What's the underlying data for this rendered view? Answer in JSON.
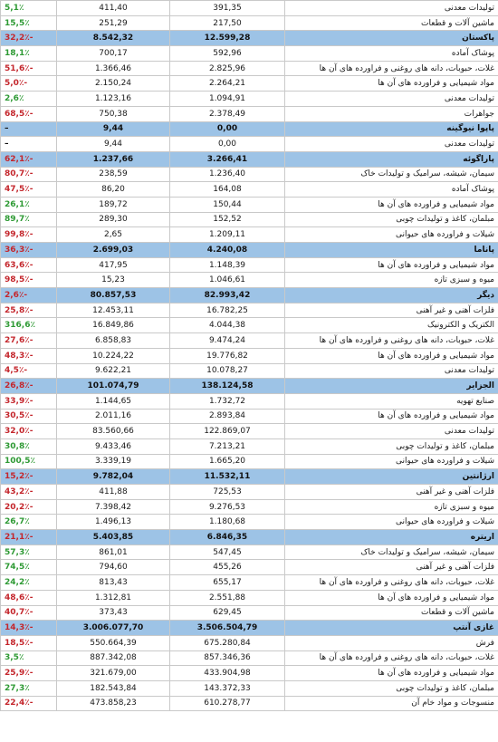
{
  "rows": [
    {
      "type": "item",
      "name": "تولیدات معدنی",
      "v2": "391,35",
      "v1": "411,40",
      "pct": "5,1٪",
      "sign": "pos"
    },
    {
      "type": "item",
      "name": "ماشین آلات و قطعات",
      "v2": "217,50",
      "v1": "251,29",
      "pct": "15,5٪",
      "sign": "pos"
    },
    {
      "type": "header",
      "name": "پاکستان",
      "v2": "12.599,28",
      "v1": "8.542,32",
      "pct": "32,2٪-",
      "sign": "neg"
    },
    {
      "type": "item",
      "name": "پوشاک آماده",
      "v2": "592,96",
      "v1": "700,17",
      "pct": "18,1٪",
      "sign": "pos"
    },
    {
      "type": "item",
      "name": "غلات، حبوبات، دانه های روغنی و فراورده های آن ها",
      "v2": "2.825,96",
      "v1": "1.366,46",
      "pct": "51,6٪-",
      "sign": "neg"
    },
    {
      "type": "item",
      "name": "مواد شیمیایی و فراورده های آن ها",
      "v2": "2.264,21",
      "v1": "2.150,24",
      "pct": "5,0٪-",
      "sign": "neg"
    },
    {
      "type": "item",
      "name": "تولیدات معدنی",
      "v2": "1.094,91",
      "v1": "1.123,16",
      "pct": "2,6٪",
      "sign": "pos"
    },
    {
      "type": "item",
      "name": "جواهرات",
      "v2": "2.378,49",
      "v1": "750,38",
      "pct": "68,5٪-",
      "sign": "neg"
    },
    {
      "type": "header",
      "name": "پاپوا نیوگینه",
      "v2": "0,00",
      "v1": "9,44",
      "pct": "–",
      "sign": "neu"
    },
    {
      "type": "item",
      "name": "تولیدات معدنی",
      "v2": "0,00",
      "v1": "9,44",
      "pct": "–",
      "sign": "neu"
    },
    {
      "type": "header",
      "name": "پاراگوئه",
      "v2": "3.266,41",
      "v1": "1.237,66",
      "pct": "62,1٪-",
      "sign": "neg"
    },
    {
      "type": "item",
      "name": "سیمان، شیشه، سرامیک و تولیدات خاک",
      "v2": "1.236,40",
      "v1": "238,59",
      "pct": "80,7٪-",
      "sign": "neg"
    },
    {
      "type": "item",
      "name": "پوشاک آماده",
      "v2": "164,08",
      "v1": "86,20",
      "pct": "47,5٪-",
      "sign": "neg"
    },
    {
      "type": "item",
      "name": "مواد شیمیایی و فراورده های آن ها",
      "v2": "150,44",
      "v1": "189,72",
      "pct": "26,1٪",
      "sign": "pos"
    },
    {
      "type": "item",
      "name": "مبلمان، کاغذ و تولیدات چوبی",
      "v2": "152,52",
      "v1": "289,30",
      "pct": "89,7٪",
      "sign": "pos"
    },
    {
      "type": "item",
      "name": "شیلات و فراورده های حیوانی",
      "v2": "1.209,11",
      "v1": "2,65",
      "pct": "99,8٪-",
      "sign": "neg"
    },
    {
      "type": "header",
      "name": "پاناما",
      "v2": "4.240,08",
      "v1": "2.699,03",
      "pct": "36,3٪-",
      "sign": "neg"
    },
    {
      "type": "item",
      "name": "مواد شیمیایی و فراورده های آن ها",
      "v2": "1.148,39",
      "v1": "417,95",
      "pct": "63,6٪-",
      "sign": "neg"
    },
    {
      "type": "item",
      "name": "میوه و سبزی تازه",
      "v2": "1.046,61",
      "v1": "15,23",
      "pct": "98,5٪-",
      "sign": "neg"
    },
    {
      "type": "header",
      "name": "دیگر",
      "v2": "82.993,42",
      "v1": "80.857,53",
      "pct": "2,6٪-",
      "sign": "neg"
    },
    {
      "type": "item",
      "name": "فلزات آهنی و غیر آهنی",
      "v2": "16.782,25",
      "v1": "12.453,11",
      "pct": "25,8٪-",
      "sign": "neg"
    },
    {
      "type": "item",
      "name": "الکتریک و الکترونیک",
      "v2": "4.044,38",
      "v1": "16.849,86",
      "pct": "316,6٪",
      "sign": "pos"
    },
    {
      "type": "item",
      "name": "غلات، حبوبات، دانه های روغنی و فراورده های آن ها",
      "v2": "9.474,24",
      "v1": "6.858,83",
      "pct": "27,6٪-",
      "sign": "neg"
    },
    {
      "type": "item",
      "name": "مواد شیمیایی و فراورده های آن ها",
      "v2": "19.776,82",
      "v1": "10.224,22",
      "pct": "48,3٪-",
      "sign": "neg"
    },
    {
      "type": "item",
      "name": "تولیدات معدنی",
      "v2": "10.078,27",
      "v1": "9.622,21",
      "pct": "4,5٪-",
      "sign": "neg"
    },
    {
      "type": "header",
      "name": "الجزایر",
      "v2": "138.124,58",
      "v1": "101.074,79",
      "pct": "26,8٪-",
      "sign": "neg"
    },
    {
      "type": "item",
      "name": "صنایع تهویه",
      "v2": "1.732,72",
      "v1": "1.144,65",
      "pct": "33,9٪-",
      "sign": "neg"
    },
    {
      "type": "item",
      "name": "مواد شیمیایی و فراورده های آن ها",
      "v2": "2.893,84",
      "v1": "2.011,16",
      "pct": "30,5٪-",
      "sign": "neg"
    },
    {
      "type": "item",
      "name": "تولیدات معدنی",
      "v2": "122.869,07",
      "v1": "83.560,66",
      "pct": "32,0٪-",
      "sign": "neg"
    },
    {
      "type": "item",
      "name": "مبلمان، کاغذ و تولیدات چوبی",
      "v2": "7.213,21",
      "v1": "9.433,46",
      "pct": "30,8٪",
      "sign": "pos"
    },
    {
      "type": "item",
      "name": "شیلات و فراورده های حیوانی",
      "v2": "1.665,20",
      "v1": "3.339,19",
      "pct": "100,5٪",
      "sign": "pos"
    },
    {
      "type": "header",
      "name": "ارژانتین",
      "v2": "11.532,11",
      "v1": "9.782,04",
      "pct": "15,2٪-",
      "sign": "neg"
    },
    {
      "type": "item",
      "name": "فلزات آهنی و غیر آهنی",
      "v2": "725,53",
      "v1": "411,88",
      "pct": "43,2٪-",
      "sign": "neg"
    },
    {
      "type": "item",
      "name": "میوه و سبزی تازه",
      "v2": "9.276,53",
      "v1": "7.398,42",
      "pct": "20,2٪-",
      "sign": "neg"
    },
    {
      "type": "item",
      "name": "شیلات و فراورده های حیوانی",
      "v2": "1.180,68",
      "v1": "1.496,13",
      "pct": "26,7٪",
      "sign": "pos"
    },
    {
      "type": "header",
      "name": "اریتره",
      "v2": "6.846,35",
      "v1": "5.403,85",
      "pct": "21,1٪-",
      "sign": "neg"
    },
    {
      "type": "item",
      "name": "سیمان، شیشه، سرامیک و تولیدات خاک",
      "v2": "547,45",
      "v1": "861,01",
      "pct": "57,3٪",
      "sign": "pos"
    },
    {
      "type": "item",
      "name": "فلزات آهنی و غیر آهنی",
      "v2": "455,26",
      "v1": "794,60",
      "pct": "74,5٪",
      "sign": "pos"
    },
    {
      "type": "item",
      "name": "غلات، حبوبات، دانه های روغنی و فراورده های آن ها",
      "v2": "655,17",
      "v1": "813,43",
      "pct": "24,2٪",
      "sign": "pos"
    },
    {
      "type": "item",
      "name": "مواد شیمیایی و فراورده های آن ها",
      "v2": "2.551,88",
      "v1": "1.312,81",
      "pct": "48,6٪-",
      "sign": "neg"
    },
    {
      "type": "item",
      "name": "ماشین آلات و قطعات",
      "v2": "629,45",
      "v1": "373,43",
      "pct": "40,7٪-",
      "sign": "neg"
    },
    {
      "type": "header",
      "name": "غازی آنتپ",
      "v2": "3.506.504,79",
      "v1": "3.006.077,70",
      "pct": "14,3٪-",
      "sign": "neg"
    },
    {
      "type": "item",
      "name": "فرش",
      "v2": "675.280,84",
      "v1": "550.664,39",
      "pct": "18,5٪-",
      "sign": "neg"
    },
    {
      "type": "item",
      "name": "غلات، حبوبات، دانه های روغنی و فراورده های آن ها",
      "v2": "857.346,36",
      "v1": "887.342,08",
      "pct": "3,5٪",
      "sign": "pos"
    },
    {
      "type": "item",
      "name": "مواد شیمیایی و فراورده های آن ها",
      "v2": "433.904,98",
      "v1": "321.679,00",
      "pct": "25,9٪-",
      "sign": "neg"
    },
    {
      "type": "item",
      "name": "مبلمان، کاغذ و تولیدات چوبی",
      "v2": "143.372,33",
      "v1": "182.543,84",
      "pct": "27,3٪",
      "sign": "pos"
    },
    {
      "type": "item",
      "name": "منسوجات و مواد خام آن",
      "v2": "610.278,77",
      "v1": "473.858,23",
      "pct": "22,4٪-",
      "sign": "neg"
    }
  ]
}
